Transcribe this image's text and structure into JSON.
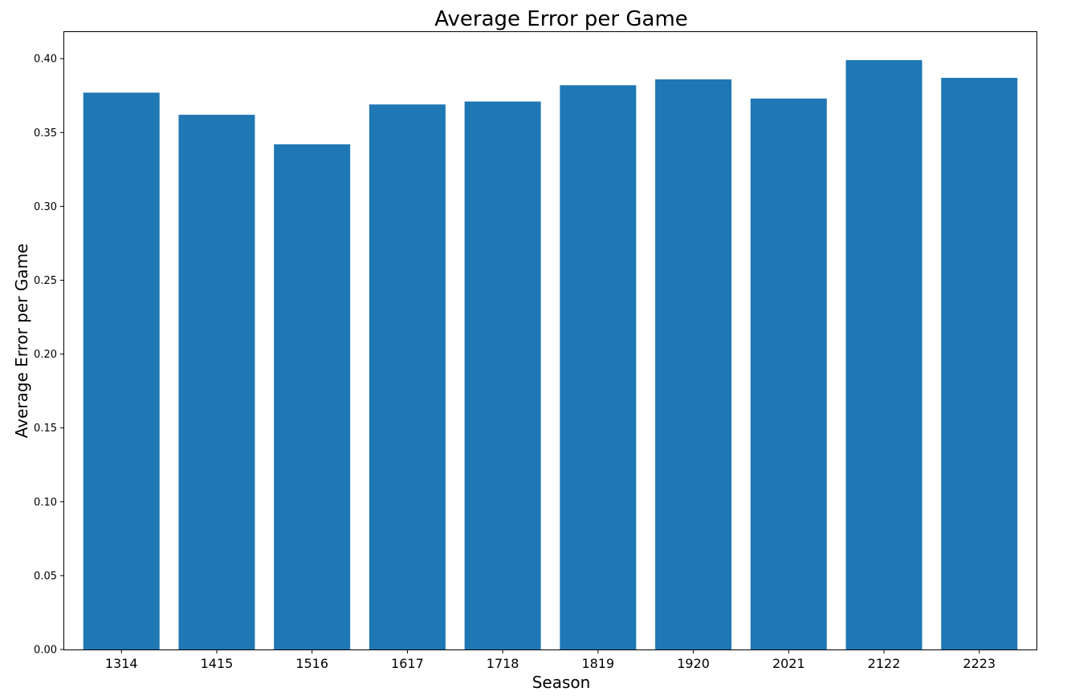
{
  "chart_data": {
    "type": "bar",
    "title": "Average Error per Game",
    "xlabel": "Season",
    "ylabel": "Average Error per Game",
    "categories": [
      "1314",
      "1415",
      "1516",
      "1617",
      "1718",
      "1819",
      "1920",
      "2021",
      "2122",
      "2223"
    ],
    "values": [
      0.377,
      0.362,
      0.342,
      0.369,
      0.371,
      0.382,
      0.386,
      0.373,
      0.399,
      0.387
    ],
    "ylim": [
      0,
      0.418
    ],
    "yticks": [
      0.0,
      0.05,
      0.1,
      0.15,
      0.2,
      0.25,
      0.3,
      0.35,
      0.4
    ],
    "ytick_labels": [
      "0.00",
      "0.05",
      "0.10",
      "0.15",
      "0.20",
      "0.25",
      "0.30",
      "0.35",
      "0.40"
    ],
    "bar_color": "#1f77b4",
    "grid": false,
    "legend": false
  }
}
